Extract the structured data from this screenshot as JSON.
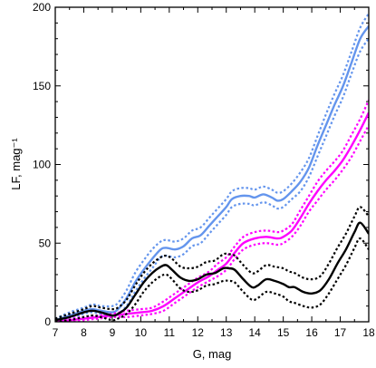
{
  "chart_data": {
    "type": "line",
    "title": "",
    "xlabel": "G, mag",
    "ylabel": "LF, mag⁻¹",
    "xlim": [
      7,
      18
    ],
    "ylim": [
      0,
      200
    ],
    "xticks": [
      7,
      8,
      9,
      10,
      11,
      12,
      13,
      14,
      15,
      16,
      17,
      18
    ],
    "yticks": [
      0,
      50,
      100,
      150,
      200
    ],
    "grid": false,
    "legend": "none",
    "series": [
      {
        "color": "#6495ed",
        "style": "solid",
        "x": [
          7.0,
          7.5,
          8.0,
          8.3,
          8.6,
          9.0,
          9.2,
          9.5,
          9.8,
          10.1,
          10.4,
          10.7,
          10.9,
          11.2,
          11.5,
          11.8,
          12.1,
          12.4,
          12.7,
          13.0,
          13.2,
          13.5,
          13.8,
          14.0,
          14.3,
          14.6,
          14.8,
          15.0,
          15.3,
          15.6,
          15.9,
          16.2,
          16.5,
          16.8,
          17.1,
          17.4,
          17.7,
          18.0
        ],
        "y": [
          1,
          4,
          7,
          8,
          7,
          6,
          8,
          15,
          25,
          33,
          40,
          46,
          47,
          46,
          48,
          53,
          55,
          61,
          67,
          73,
          78,
          80,
          80,
          79,
          81,
          79,
          77,
          78,
          83,
          89,
          98,
          112,
          125,
          138,
          150,
          165,
          180,
          188
        ]
      },
      {
        "color": "#6495ed",
        "style": "dotted",
        "x": [
          7.0,
          7.5,
          8.0,
          8.3,
          8.6,
          9.0,
          9.2,
          9.5,
          9.8,
          10.1,
          10.4,
          10.7,
          10.9,
          11.2,
          11.5,
          11.8,
          12.1,
          12.4,
          12.7,
          13.0,
          13.2,
          13.5,
          13.8,
          14.0,
          14.3,
          14.6,
          14.8,
          15.0,
          15.3,
          15.6,
          15.9,
          16.2,
          16.5,
          16.8,
          17.1,
          17.4,
          17.7,
          18.0
        ],
        "y": [
          2,
          6,
          9,
          11,
          10,
          10,
          12,
          20,
          31,
          39,
          46,
          51,
          52,
          51,
          53,
          58,
          60,
          66,
          72,
          78,
          83,
          85,
          85,
          84,
          86,
          84,
          82,
          83,
          88,
          95,
          104,
          118,
          132,
          145,
          157,
          172,
          187,
          196
        ]
      },
      {
        "color": "#6495ed",
        "style": "dotted",
        "x": [
          7.0,
          7.5,
          8.0,
          8.3,
          8.6,
          9.0,
          9.2,
          9.5,
          9.8,
          10.1,
          10.4,
          10.7,
          10.9,
          11.2,
          11.5,
          11.8,
          12.1,
          12.4,
          12.7,
          13.0,
          13.2,
          13.5,
          13.8,
          14.0,
          14.3,
          14.6,
          14.8,
          15.0,
          15.3,
          15.6,
          15.9,
          16.2,
          16.5,
          16.8,
          17.1,
          17.4,
          17.7,
          18.0
        ],
        "y": [
          0,
          2,
          5,
          6,
          5,
          4,
          5,
          10,
          19,
          27,
          34,
          41,
          42,
          41,
          43,
          48,
          50,
          56,
          62,
          68,
          73,
          75,
          75,
          74,
          76,
          74,
          72,
          73,
          78,
          83,
          92,
          105,
          118,
          131,
          143,
          158,
          172,
          180
        ]
      },
      {
        "color": "#ff00ff",
        "style": "solid",
        "x": [
          7.0,
          7.5,
          8.0,
          8.5,
          9.0,
          9.5,
          10.0,
          10.4,
          10.8,
          11.2,
          11.6,
          12.0,
          12.4,
          12.7,
          13.0,
          13.3,
          13.6,
          14.0,
          14.4,
          14.8,
          15.0,
          15.3,
          15.6,
          15.9,
          16.2,
          16.5,
          16.8,
          17.1,
          17.4,
          17.7,
          18.0
        ],
        "y": [
          0,
          1,
          2,
          3,
          4,
          5,
          6,
          7,
          10,
          15,
          20,
          25,
          29,
          33,
          37,
          44,
          50,
          53,
          54,
          53,
          54,
          58,
          66,
          75,
          83,
          90,
          96,
          103,
          112,
          122,
          133
        ]
      },
      {
        "color": "#ff00ff",
        "style": "dotted",
        "x": [
          7.0,
          7.5,
          8.0,
          8.5,
          9.0,
          9.5,
          10.0,
          10.4,
          10.8,
          11.2,
          11.6,
          12.0,
          12.4,
          12.7,
          13.0,
          13.3,
          13.6,
          14.0,
          14.4,
          14.8,
          15.0,
          15.3,
          15.6,
          15.9,
          16.2,
          16.5,
          16.8,
          17.1,
          17.4,
          17.7,
          18.0
        ],
        "y": [
          1,
          2,
          3,
          4,
          5,
          7,
          8,
          9,
          13,
          18,
          23,
          28,
          32,
          37,
          41,
          48,
          54,
          57,
          58,
          57,
          58,
          62,
          71,
          80,
          89,
          96,
          102,
          109,
          119,
          129,
          141
        ]
      },
      {
        "color": "#ff00ff",
        "style": "dotted",
        "x": [
          7.0,
          7.5,
          8.0,
          8.5,
          9.0,
          9.5,
          10.0,
          10.4,
          10.8,
          11.2,
          11.6,
          12.0,
          12.4,
          12.7,
          13.0,
          13.3,
          13.6,
          14.0,
          14.4,
          14.8,
          15.0,
          15.3,
          15.6,
          15.9,
          16.2,
          16.5,
          16.8,
          17.1,
          17.4,
          17.7,
          18.0
        ],
        "y": [
          0,
          0,
          1,
          2,
          3,
          3,
          4,
          5,
          7,
          12,
          17,
          22,
          26,
          29,
          33,
          40,
          46,
          49,
          50,
          49,
          50,
          54,
          61,
          70,
          77,
          84,
          90,
          97,
          105,
          115,
          125
        ]
      },
      {
        "color": "#000000",
        "style": "solid",
        "x": [
          7.0,
          7.5,
          8.0,
          8.3,
          8.6,
          9.0,
          9.2,
          9.5,
          9.8,
          10.1,
          10.4,
          10.7,
          10.9,
          11.1,
          11.4,
          11.7,
          12.0,
          12.3,
          12.6,
          12.9,
          13.1,
          13.3,
          13.6,
          13.9,
          14.1,
          14.4,
          14.7,
          15.0,
          15.2,
          15.4,
          15.7,
          16.0,
          16.3,
          16.6,
          16.9,
          17.2,
          17.5,
          17.7,
          18.0
        ],
        "y": [
          1,
          3,
          6,
          7,
          6,
          4,
          5,
          9,
          17,
          25,
          31,
          35,
          36,
          33,
          28,
          26,
          27,
          30,
          31,
          34,
          34,
          33,
          27,
          22,
          23,
          27,
          26,
          24,
          22,
          22,
          19,
          18,
          20,
          27,
          37,
          46,
          57,
          63,
          56
        ]
      },
      {
        "color": "#000000",
        "style": "dotted",
        "x": [
          7.0,
          7.5,
          8.0,
          8.3,
          8.6,
          9.0,
          9.2,
          9.5,
          9.8,
          10.1,
          10.4,
          10.7,
          10.9,
          11.1,
          11.4,
          11.7,
          12.0,
          12.3,
          12.6,
          12.9,
          13.1,
          13.3,
          13.6,
          13.9,
          14.1,
          14.4,
          14.7,
          15.0,
          15.2,
          15.4,
          15.7,
          16.0,
          16.3,
          16.6,
          16.9,
          17.2,
          17.5,
          17.7,
          18.0
        ],
        "y": [
          2,
          5,
          8,
          10,
          9,
          8,
          9,
          14,
          23,
          31,
          37,
          41,
          42,
          40,
          35,
          34,
          35,
          38,
          39,
          43,
          43,
          42,
          36,
          31,
          32,
          36,
          35,
          34,
          32,
          31,
          28,
          27,
          29,
          37,
          47,
          56,
          67,
          73,
          67
        ]
      },
      {
        "color": "#000000",
        "style": "dotted",
        "x": [
          7.0,
          7.5,
          8.0,
          8.3,
          8.6,
          9.0,
          9.2,
          9.5,
          9.8,
          10.1,
          10.4,
          10.7,
          10.9,
          11.1,
          11.4,
          11.7,
          12.0,
          12.3,
          12.6,
          12.9,
          13.1,
          13.3,
          13.6,
          13.9,
          14.1,
          14.4,
          14.7,
          15.0,
          15.2,
          15.4,
          15.7,
          16.0,
          16.3,
          16.6,
          16.9,
          17.2,
          17.5,
          17.7,
          18.0
        ],
        "y": [
          0,
          1,
          3,
          4,
          3,
          1,
          2,
          5,
          11,
          19,
          25,
          29,
          30,
          27,
          21,
          19,
          20,
          23,
          24,
          26,
          26,
          25,
          19,
          14,
          15,
          19,
          18,
          16,
          13,
          12,
          10,
          9,
          11,
          18,
          27,
          36,
          47,
          53,
          46
        ]
      }
    ]
  }
}
